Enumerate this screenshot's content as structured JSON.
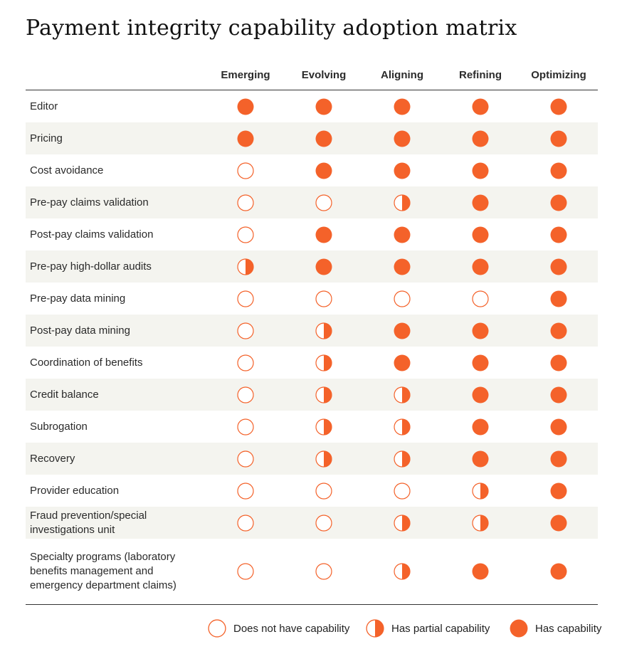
{
  "chart_data": {
    "type": "table",
    "title": "Payment integrity capability adoption matrix",
    "columns": [
      "Emerging",
      "Evolving",
      "Aligning",
      "Refining",
      "Optimizing"
    ],
    "levels": {
      "none": "Does not have capability",
      "partial": "Has partial capability",
      "full": "Has capability"
    },
    "rows": [
      {
        "label": "Editor",
        "values": [
          "full",
          "full",
          "full",
          "full",
          "full"
        ]
      },
      {
        "label": "Pricing",
        "values": [
          "full",
          "full",
          "full",
          "full",
          "full"
        ]
      },
      {
        "label": "Cost avoidance",
        "values": [
          "none",
          "full",
          "full",
          "full",
          "full"
        ]
      },
      {
        "label": "Pre-pay claims validation",
        "values": [
          "none",
          "none",
          "partial",
          "full",
          "full"
        ]
      },
      {
        "label": "Post-pay claims validation",
        "values": [
          "none",
          "full",
          "full",
          "full",
          "full"
        ]
      },
      {
        "label": "Pre-pay high-dollar audits",
        "values": [
          "partial",
          "full",
          "full",
          "full",
          "full"
        ]
      },
      {
        "label": "Pre-pay data mining",
        "values": [
          "none",
          "none",
          "none",
          "none",
          "full"
        ]
      },
      {
        "label": "Post-pay data mining",
        "values": [
          "none",
          "partial",
          "full",
          "full",
          "full"
        ]
      },
      {
        "label": "Coordination of benefits",
        "values": [
          "none",
          "partial",
          "full",
          "full",
          "full"
        ]
      },
      {
        "label": "Credit balance",
        "values": [
          "none",
          "partial",
          "partial",
          "full",
          "full"
        ]
      },
      {
        "label": "Subrogation",
        "values": [
          "none",
          "partial",
          "partial",
          "full",
          "full"
        ]
      },
      {
        "label": "Recovery",
        "values": [
          "none",
          "partial",
          "partial",
          "full",
          "full"
        ]
      },
      {
        "label": "Provider education",
        "values": [
          "none",
          "none",
          "none",
          "partial",
          "full"
        ]
      },
      {
        "label": "Fraud prevention/special investigations unit",
        "values": [
          "none",
          "none",
          "partial",
          "partial",
          "full"
        ]
      },
      {
        "label": "Specialty programs (laboratory benefits management and emergency department claims)",
        "values": [
          "none",
          "none",
          "partial",
          "full",
          "full"
        ]
      }
    ],
    "legend": [
      {
        "key": "none",
        "label": "Does not have capability"
      },
      {
        "key": "partial",
        "label": "Has partial capability"
      },
      {
        "key": "full",
        "label": "Has capability"
      }
    ],
    "colors": {
      "accent": "#f4622a",
      "row_band": "#f4f4ef",
      "rule": "#333333"
    }
  }
}
